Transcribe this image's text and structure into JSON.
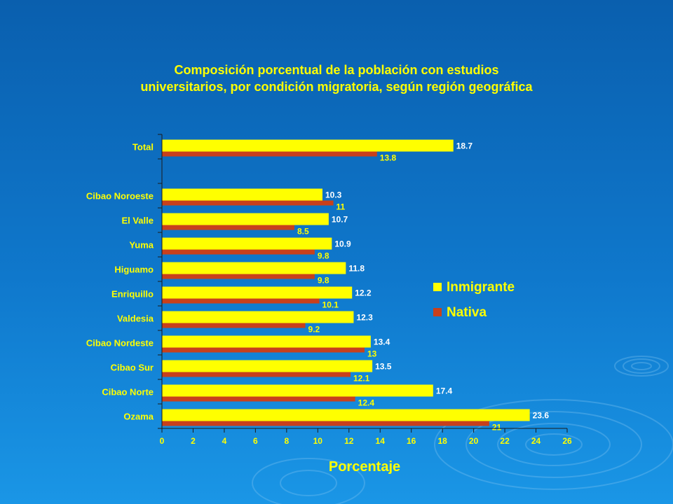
{
  "chart_data": {
    "type": "bar",
    "orientation": "horizontal",
    "title": "Composición porcentual de la población con estudios universitarios, por condición migratoria, según región geográfica",
    "xlabel": "Porcentaje",
    "ylabel": "",
    "xlim": [
      0,
      26
    ],
    "xticks": [
      "0",
      "2",
      "4",
      "6",
      "8",
      "10",
      "12",
      "14",
      "16",
      "18",
      "20",
      "22",
      "24",
      "26"
    ],
    "grid": false,
    "legend_position": "right",
    "categories": [
      "Total",
      "Cibao Noroeste",
      "El Valle",
      "Yuma",
      "Higuamo",
      "Enriquillo",
      "Valdesia",
      "Cibao Nordeste",
      "Cibao Sur",
      "Cibao Norte",
      "Ozama"
    ],
    "series": [
      {
        "name": "Inmigrante",
        "color": "#ffff00",
        "values": [
          18.7,
          10.3,
          10.7,
          10.9,
          11.8,
          12.2,
          12.3,
          13.4,
          13.5,
          17.4,
          23.6
        ],
        "labels": [
          "18.7",
          "10.3",
          "10.7",
          "10.9",
          "11.8",
          "12.2",
          "12.3",
          "13.4",
          "13.5",
          "17.4",
          "23.6"
        ]
      },
      {
        "name": "Nativa",
        "color": "#c8401c",
        "values": [
          13.8,
          11,
          8.5,
          9.8,
          9.8,
          10.1,
          9.2,
          13,
          12.1,
          12.4,
          21
        ],
        "labels": [
          "13.8",
          "11",
          "8.5",
          "9.8",
          "9.8",
          "10.1",
          "9.2",
          "13",
          "12.1",
          "12.4",
          "21"
        ]
      }
    ]
  }
}
